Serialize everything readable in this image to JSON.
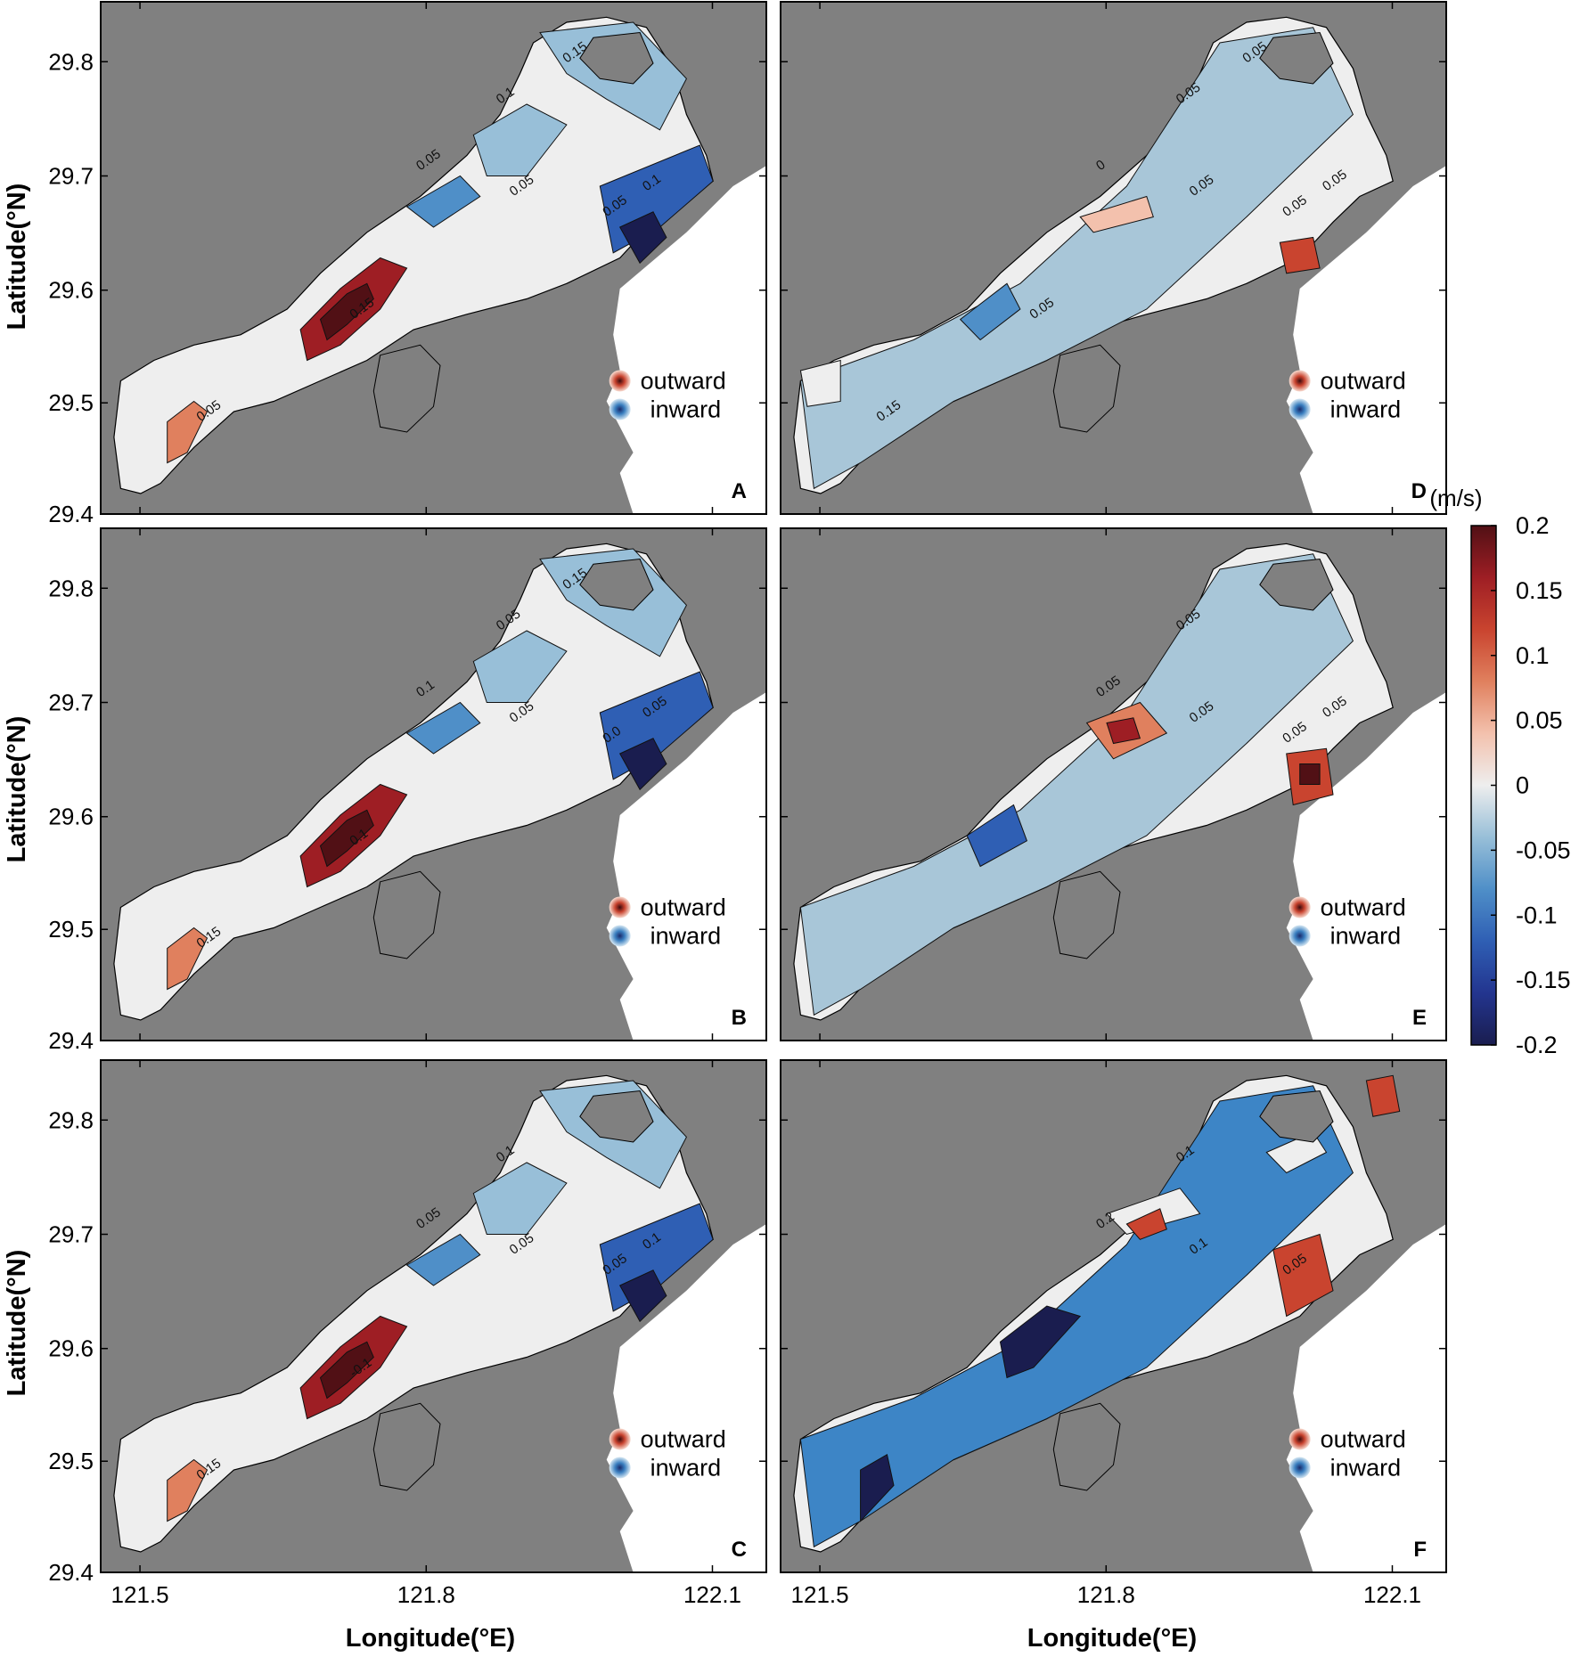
{
  "figure": {
    "colorbar": {
      "unit": "(m/s)",
      "min": -0.2,
      "max": 0.2,
      "ticks": [
        "0.2",
        "0.15",
        "0.1",
        "0.05",
        "0",
        "-0.05",
        "-0.1",
        "-0.15",
        "-0.2"
      ],
      "colors": [
        "#1a1d4f",
        "#23358f",
        "#2f5fb4",
        "#4f8fc8",
        "#98bfd8",
        "#eeeeee",
        "#f3c1ad",
        "#e0805e",
        "#c9442f",
        "#9e1e24",
        "#511015"
      ]
    },
    "axes": {
      "xlabel": "Longitude(°E)",
      "ylabel": "Latitude(°N)",
      "xticks": [
        "121.5",
        "121.8",
        "122.1"
      ],
      "yticks": [
        "29.8",
        "29.7",
        "29.6",
        "29.5",
        "29.4"
      ]
    },
    "legend": {
      "outward": "outward",
      "inward": "inward",
      "outward_color": "#c9442f",
      "inward_color": "#3a7fc0"
    },
    "land_color": "#808080",
    "panels": [
      {
        "label": "A",
        "col": 0,
        "row": 0,
        "contours": [
          "0.05",
          "0.05",
          "0.1",
          "0.05",
          "0.1",
          "0.15",
          "0.05",
          "0.15"
        ]
      },
      {
        "label": "B",
        "col": 0,
        "row": 1,
        "contours": [
          "0.1",
          "0.05",
          "0.05",
          "0.0",
          "0.05",
          "0.1",
          "0.15",
          "0.15"
        ]
      },
      {
        "label": "C",
        "col": 0,
        "row": 2,
        "contours": [
          "0.05",
          "0.05",
          "0.1",
          "0.05",
          "0.1",
          "-0.1",
          "0.15"
        ]
      },
      {
        "label": "D",
        "col": 1,
        "row": 0,
        "contours": [
          "0",
          "0.05",
          "0.05",
          "0.05",
          "0.05",
          "0.05",
          "0.15",
          "0.05"
        ]
      },
      {
        "label": "E",
        "col": 1,
        "row": 1,
        "contours": [
          "0.05",
          "0.05",
          "0.05",
          "0.05",
          "0.05"
        ]
      },
      {
        "label": "F",
        "col": 1,
        "row": 2,
        "contours": [
          "0.2",
          "0.1",
          "0.1",
          "0.05"
        ]
      }
    ]
  }
}
